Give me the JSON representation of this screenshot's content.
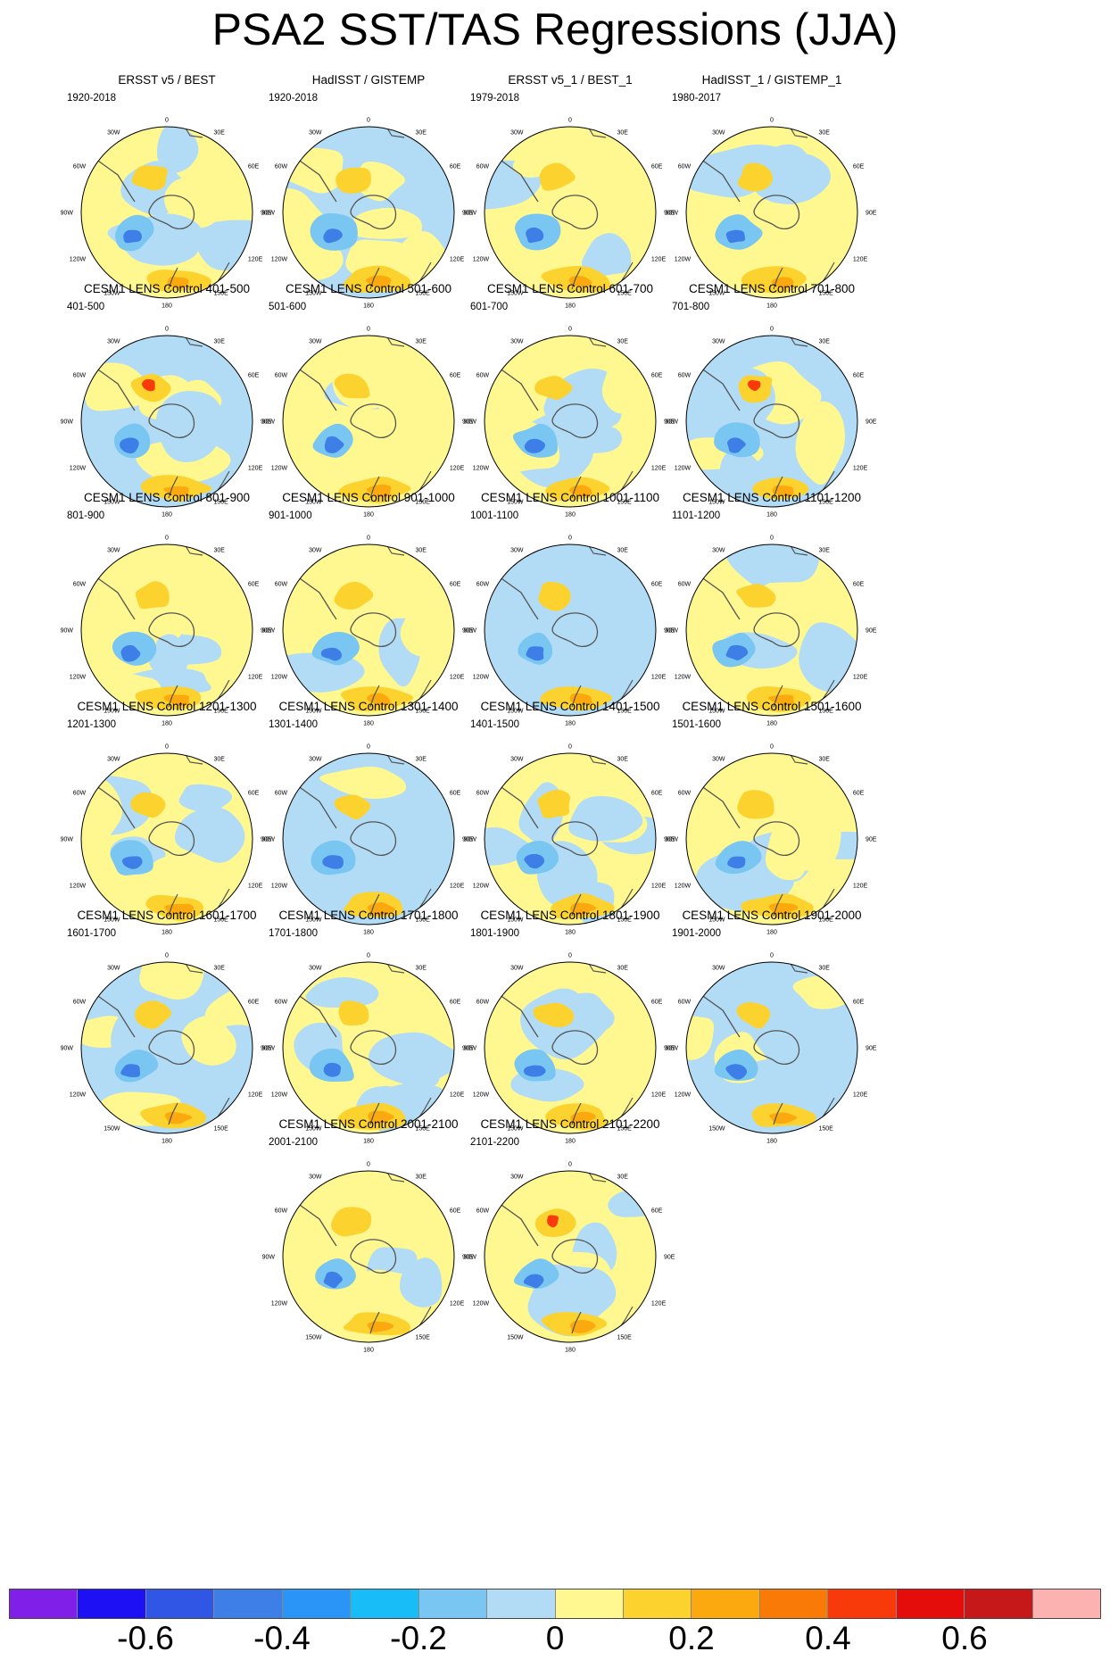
{
  "title": "PSA2 SST/TAS Regressions (JJA)",
  "longitude_labels": [
    "0",
    "30E",
    "60E",
    "90E",
    "120E",
    "150E",
    "180",
    "150W",
    "120W",
    "90W",
    "60W",
    "30W"
  ],
  "panels": [
    {
      "title": "ERSST v5 / BEST",
      "period": "1920-2018"
    },
    {
      "title": "HadISST / GISTEMP",
      "period": "1920-2018"
    },
    {
      "title": "ERSST v5_1 / BEST_1",
      "period": "1979-2018"
    },
    {
      "title": "HadISST_1 / GISTEMP_1",
      "period": "1980-2017"
    },
    {
      "title": "CESM1 LENS Control 401-500",
      "period": "401-500"
    },
    {
      "title": "CESM1 LENS Control 501-600",
      "period": "501-600"
    },
    {
      "title": "CESM1 LENS Control 601-700",
      "period": "601-700"
    },
    {
      "title": "CESM1 LENS Control 701-800",
      "period": "701-800"
    },
    {
      "title": "CESM1 LENS Control 801-900",
      "period": "801-900"
    },
    {
      "title": "CESM1 LENS Control 901-1000",
      "period": "901-1000"
    },
    {
      "title": "CESM1 LENS Control 1001-1100",
      "period": "1001-1100"
    },
    {
      "title": "CESM1 LENS Control 1101-1200",
      "period": "1101-1200"
    },
    {
      "title": "CESM1 LENS Control 1201-1300",
      "period": "1201-1300"
    },
    {
      "title": "CESM1 LENS Control 1301-1400",
      "period": "1301-1400"
    },
    {
      "title": "CESM1 LENS Control 1401-1500",
      "period": "1401-1500"
    },
    {
      "title": "CESM1 LENS Control 1501-1600",
      "period": "1501-1600"
    },
    {
      "title": "CESM1 LENS Control 1601-1700",
      "period": "1601-1700"
    },
    {
      "title": "CESM1 LENS Control 1701-1800",
      "period": "1701-1800"
    },
    {
      "title": "CESM1 LENS Control 1801-1900",
      "period": "1801-1900"
    },
    {
      "title": "CESM1 LENS Control 1901-2000",
      "period": "1901-2000"
    },
    {
      "title": "CESM1 LENS Control 2001-2100",
      "period": "2001-2100"
    },
    {
      "title": "CESM1 LENS Control 2101-2200",
      "period": "2101-2200"
    }
  ],
  "colorbar": {
    "colors": [
      "#7f1fe8",
      "#1e10f5",
      "#2f56e4",
      "#3d7fe6",
      "#2a94f7",
      "#18bcf7",
      "#79c6f2",
      "#b2dcf5",
      "#fff890",
      "#fcd22e",
      "#fca80f",
      "#fa7a08",
      "#f83a0b",
      "#e40d0b",
      "#c61819",
      "#fdb2b2"
    ],
    "labels": [
      "-0.6",
      "-0.4",
      "-0.2",
      "0",
      "0.2",
      "0.4",
      "0.6"
    ],
    "label_values": [
      -0.6,
      -0.4,
      -0.2,
      0,
      0.2,
      0.4,
      0.6
    ],
    "range": [
      -0.8,
      0.8
    ],
    "interval": 0.1
  }
}
